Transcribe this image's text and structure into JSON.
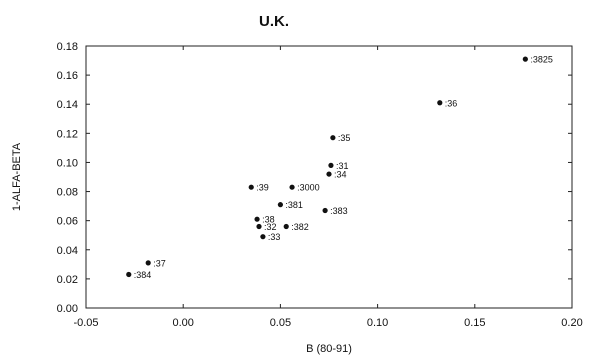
{
  "chart_data": {
    "type": "scatter",
    "title": "U.K.",
    "xlabel": "B (80-91)",
    "ylabel": "1-ALFA-BETA",
    "xlim": [
      -0.05,
      0.2
    ],
    "ylim": [
      0.0,
      0.18
    ],
    "x_ticks": [
      "-0.05",
      "0.00",
      "0.05",
      "0.10",
      "0.15",
      "0.20"
    ],
    "y_ticks": [
      "0.00",
      "0.02",
      "0.04",
      "0.06",
      "0.08",
      "0.10",
      "0.12",
      "0.14",
      "0.16",
      "0.18"
    ],
    "grid": false,
    "points": [
      {
        "label": ":3825",
        "x": 0.176,
        "y": 0.171
      },
      {
        "label": ":36",
        "x": 0.132,
        "y": 0.141
      },
      {
        "label": ":35",
        "x": 0.077,
        "y": 0.117
      },
      {
        "label": ":31",
        "x": 0.076,
        "y": 0.098
      },
      {
        "label": ":34",
        "x": 0.075,
        "y": 0.092
      },
      {
        "label": ":39",
        "x": 0.035,
        "y": 0.083
      },
      {
        "label": ":3000",
        "x": 0.056,
        "y": 0.083
      },
      {
        "label": ":381",
        "x": 0.05,
        "y": 0.071
      },
      {
        "label": ":383",
        "x": 0.073,
        "y": 0.067
      },
      {
        "label": ":38",
        "x": 0.038,
        "y": 0.061
      },
      {
        "label": ":32",
        "x": 0.039,
        "y": 0.056
      },
      {
        "label": ":382",
        "x": 0.053,
        "y": 0.056
      },
      {
        "label": ":33",
        "x": 0.041,
        "y": 0.049
      },
      {
        "label": ":37",
        "x": -0.018,
        "y": 0.031
      },
      {
        "label": ":384",
        "x": -0.028,
        "y": 0.023
      }
    ]
  }
}
